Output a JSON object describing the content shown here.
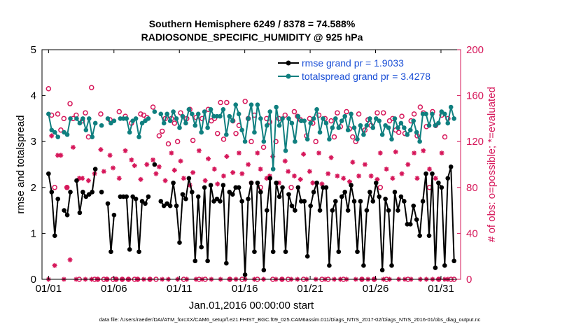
{
  "chart_data": {
    "type": "line",
    "title": "Southern Hemisphere 6249 / 8378 = 74.588%",
    "subtitle": "RADIOSONDE_SPECIFIC_HUMIDITY @ 925 hPa",
    "xlabel": "Jan.01,2016 00:00:00 start",
    "ylabel_left": "rmse and totalspread",
    "ylabel_right": "# of obs: o=possible; *=evaluated",
    "footer": "data file: /Users/raeder/DAI/ATM_forcXX/CAM6_setup/f.e21.FHIST_BGC.f09_025.CAM6assim.011/Diags_NTrS_2017-02/Diags_NTrS_2016-01/obs_diag_output.nc",
    "xlim": [
      0.5,
      32.5
    ],
    "ylim_left": [
      0,
      5
    ],
    "ylim_right": [
      0,
      200
    ],
    "x_ticks": [
      {
        "value": 1,
        "label": "01/01"
      },
      {
        "value": 6,
        "label": "01/06"
      },
      {
        "value": 11,
        "label": "01/11"
      },
      {
        "value": 16,
        "label": "01/16"
      },
      {
        "value": 21,
        "label": "01/21"
      },
      {
        "value": 26,
        "label": "01/26"
      },
      {
        "value": 31,
        "label": "01/31"
      }
    ],
    "y_ticks_left": [
      "0",
      "1",
      "2",
      "3",
      "4",
      "5"
    ],
    "y_ticks_right": [
      "0",
      "40",
      "80",
      "120",
      "160",
      "200"
    ],
    "legend": [
      "rmse grand pr = 1.9033",
      "totalspread grand pr = 3.4278"
    ],
    "colors": {
      "rmse": "#000000",
      "totalspread": "#0f7f7f",
      "obs": "#d6175a",
      "legend_text": "#1a4fd6",
      "axis": "#000000"
    },
    "series": [
      {
        "name": "rmse",
        "axis": "left",
        "values": [
          2.3,
          1.9,
          0.95,
          1.75,
          null,
          1.5,
          1.4,
          1.9,
          null,
          2.15,
          1.45,
          1.9,
          1.8,
          1.85,
          1.9,
          2.4,
          null,
          1.9,
          null,
          1.65,
          0.6,
          1.4,
          null,
          1.8,
          1.8,
          1.8,
          0.65,
          1.8,
          1.75,
          0.6,
          1.7,
          1.65,
          1.8,
          null,
          2.5,
          null,
          1.7,
          1.6,
          1.65,
          1.6,
          2.1,
          1.6,
          0.8,
          1.85,
          1.75,
          2.2,
          1.9,
          0.4,
          1.8,
          0.7,
          2.0,
          0.4,
          2.05,
          1.7,
          1.75,
          1.7,
          2.05,
          0.35,
          1.9,
          1.85,
          2.0,
          2.0,
          1.7,
          0.1,
          1.75,
          2.1,
          0.6,
          2.1,
          1.9,
          0.2,
          1.5,
          2.2,
          0.6,
          2.1,
          1.8,
          2.0,
          0.6,
          1.85,
          1.6,
          1.5,
          2.0,
          1.7,
          1.7,
          0.5,
          1.6,
          1.9,
          2.1,
          1.5,
          2.0,
          2.0,
          0.3,
          1.5,
          1.7,
          0.6,
          1.8,
          1.9,
          1.5,
          2.05,
          1.7,
          0.6,
          1.7,
          0.3,
          1.5,
          1.9,
          1.7,
          2.1,
          1.8,
          0.2,
          1.75,
          1.5,
          0.3,
          1.9,
          1.5,
          1.8,
          1.7,
          1.2,
          1.2,
          1.6,
          1.3,
          0.95,
          1.7,
          2.3,
          0.95,
          2.3,
          0.25,
          2.1,
          2.0,
          0.3,
          2.2,
          2.45,
          0.4
        ]
      },
      {
        "name": "totalspread",
        "axis": "left",
        "values": [
          3.6,
          3.25,
          3.2,
          3.1,
          null,
          3.2,
          3.15,
          3.5,
          null,
          3.5,
          3.4,
          3.5,
          3.25,
          3.5,
          3.1,
          3.4,
          null,
          3.35,
          null,
          3.5,
          3.4,
          3.45,
          null,
          3.5,
          3.5,
          3.5,
          3.2,
          3.45,
          3.5,
          3.1,
          3.4,
          3.45,
          3.5,
          null,
          3.65,
          null,
          3.6,
          3.4,
          3.6,
          3.45,
          3.65,
          3.5,
          3.3,
          3.55,
          3.4,
          3.7,
          3.6,
          3.35,
          3.6,
          3.2,
          3.65,
          3.3,
          3.7,
          3.55,
          3.55,
          3.55,
          3.7,
          3.15,
          3.55,
          3.45,
          3.8,
          3.6,
          3.25,
          3.0,
          3.5,
          3.8,
          3.2,
          3.8,
          3.5,
          3.0,
          3.35,
          3.65,
          2.4,
          3.75,
          3.35,
          3.5,
          2.8,
          3.5,
          3.4,
          3.0,
          3.55,
          3.45,
          3.45,
          3.05,
          3.4,
          3.5,
          3.7,
          3.2,
          3.5,
          3.4,
          3.05,
          3.3,
          3.5,
          3.3,
          3.45,
          3.55,
          3.25,
          3.6,
          3.3,
          3.05,
          3.35,
          3.15,
          3.35,
          3.5,
          3.3,
          3.5,
          3.45,
          3.15,
          3.35,
          3.3,
          3.05,
          3.5,
          3.3,
          3.4,
          3.3,
          3.15,
          3.25,
          3.45,
          3.2,
          3.0,
          3.6,
          3.6,
          3.35,
          3.6,
          3.35,
          3.4,
          3.65,
          3.6,
          3.4,
          3.75,
          3.5
        ]
      },
      {
        "name": "possible",
        "axis": "right",
        "marker": "o",
        "values": [
          166,
          143,
          80,
          144,
          130,
          140,
          80,
          153,
          140,
          143,
          0,
          138,
          145,
          124,
          167,
          0,
          0,
          144,
          0,
          0,
          139,
          0,
          0,
          146,
          0,
          142,
          0,
          136,
          0,
          0,
          144,
          143,
          141,
          0,
          150,
          0,
          125,
          129,
          140,
          118,
          140,
          136,
          120,
          145,
          0,
          140,
          148,
          121,
          141,
          0,
          140,
          0,
          148,
          138,
          140,
          127,
          154,
          122,
          154,
          0,
          138,
          127,
          134,
          0,
          155,
          140,
          120,
          143,
          0,
          80,
          115,
          140,
          137,
          0,
          120,
          140,
          0,
          143,
          0,
          80,
          146,
          142,
          139,
          0,
          125,
          140,
          136,
          120,
          143,
          0,
          140,
          0,
          138,
          124,
          145,
          133,
          0,
          146,
          131,
          124,
          120,
          144,
          0,
          130,
          139,
          134,
          0,
          145,
          80,
          145,
          0,
          138,
          140,
          130,
          128,
          142,
          127,
          0,
          138,
          144,
          125,
          150,
          145,
          133,
          80,
          146,
          134,
          0,
          143,
          124,
          140,
          0,
          0
        ]
      },
      {
        "name": "evaluated",
        "axis": "right",
        "marker": "*",
        "values": [
          0,
          125,
          12,
          108,
          108,
          0,
          80,
          17,
          115,
          0,
          88,
          88,
          0,
          86,
          0,
          92,
          0,
          113,
          94,
          0,
          108,
          97,
          0,
          88,
          0,
          112,
          0,
          104,
          99,
          0,
          87,
          0,
          100,
          0,
          104,
          92,
          98,
          0,
          86,
          0,
          110,
          95,
          0,
          103,
          88,
          0,
          82,
          93,
          0,
          112,
          0,
          86,
          105,
          0,
          96,
          83,
          0,
          90,
          107,
          0,
          93,
          0,
          110,
          92,
          0,
          100,
          84,
          0,
          110,
          96,
          0,
          88,
          90,
          107,
          0,
          84,
          0,
          103,
          94,
          0,
          90,
          0,
          87,
          109,
          0,
          94,
          84,
          0,
          110,
          83,
          0,
          92,
          106,
          0,
          90,
          0,
          88,
          0,
          85,
          102,
          0,
          90,
          0,
          100,
          0,
          90,
          0,
          87,
          110,
          0,
          96,
          0,
          88,
          111,
          0,
          92,
          0,
          100,
          0,
          110,
          88,
          0,
          112,
          0,
          96,
          0,
          88,
          0,
          110,
          0,
          0
        ]
      }
    ]
  }
}
